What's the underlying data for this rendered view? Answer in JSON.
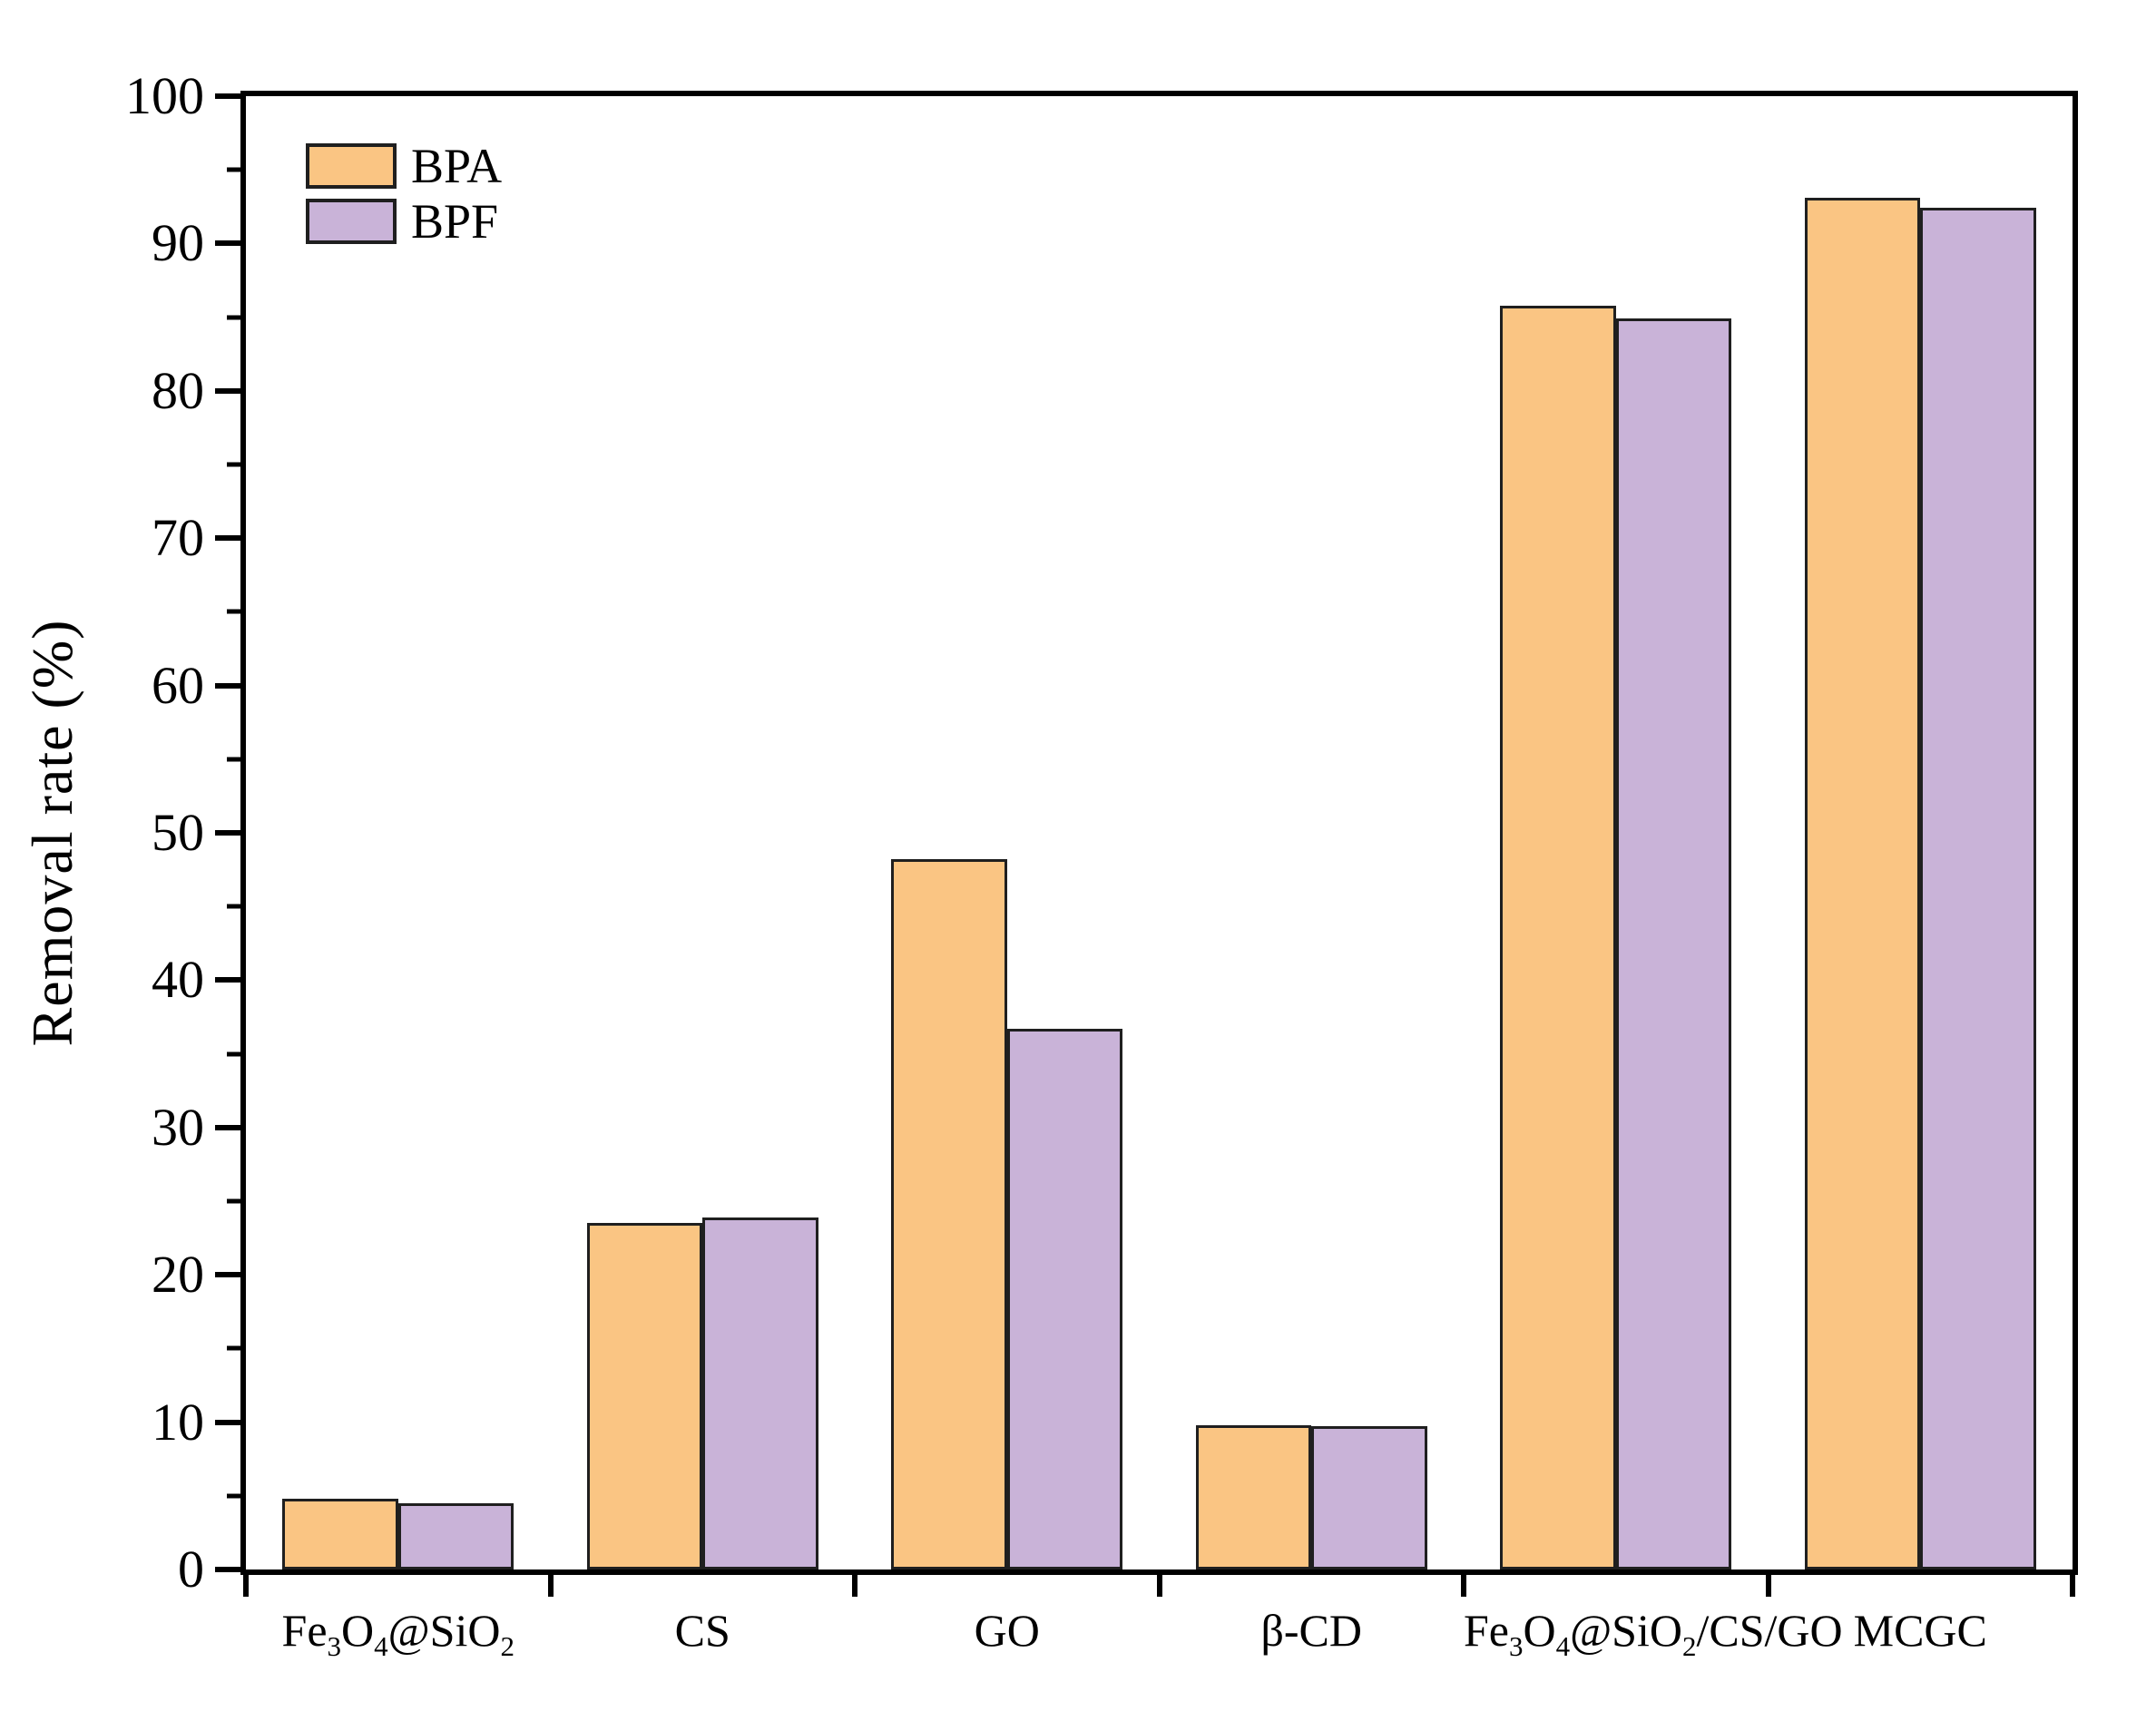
{
  "figure": {
    "background": "#ffffff"
  },
  "chart_data": {
    "type": "bar",
    "title": "",
    "xlabel": "",
    "ylabel": "Removal rate (%)",
    "ylim": [
      0,
      100
    ],
    "y_major_step": 10,
    "y_minor_step": 5,
    "grid": false,
    "legend_position": "top-left-inside",
    "y_tick_labels": [
      "0",
      "10",
      "20",
      "30",
      "40",
      "50",
      "60",
      "70",
      "80",
      "90",
      "100"
    ],
    "categories": [
      "Fe_3O_4@SiO_2",
      "CS",
      "GO",
      "β-CD",
      "Fe_3O_4@SiO_2/CS/GO",
      "MCGC"
    ],
    "series": [
      {
        "name": "BPA",
        "color": "#FAC583",
        "values": [
          4.8,
          23.5,
          48.2,
          9.8,
          85.8,
          93.1
        ]
      },
      {
        "name": "BPF",
        "color": "#C9B3D8",
        "values": [
          4.5,
          23.9,
          36.7,
          9.7,
          84.9,
          92.4
        ]
      }
    ],
    "bar_border_color": "#1f1f1f",
    "axis_color": "#000000"
  }
}
